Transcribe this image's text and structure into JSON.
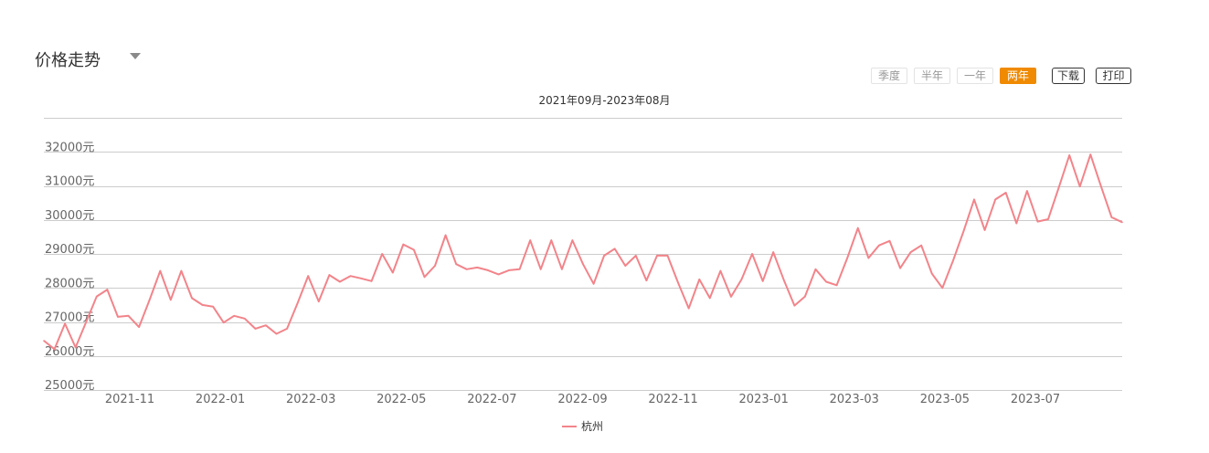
{
  "header": {
    "title": "价格走势"
  },
  "range_buttons": [
    {
      "label": "季度",
      "active": false
    },
    {
      "label": "半年",
      "active": false
    },
    {
      "label": "一年",
      "active": false
    },
    {
      "label": "两年",
      "active": true
    }
  ],
  "tools": {
    "download": "下载",
    "print": "打印"
  },
  "colors": {
    "accent": "#f08a00",
    "series": "#f2848a",
    "grid": "#cccccc"
  },
  "chart_data": {
    "type": "line",
    "title": "2021年09月-2023年08月",
    "ylim": [
      25000,
      33000
    ],
    "y_ticks": [
      25000,
      26000,
      27000,
      28000,
      29000,
      30000,
      31000,
      32000
    ],
    "y_tick_labels": [
      "25000元",
      "26000元",
      "27000元",
      "28000元",
      "29000元",
      "30000元",
      "31000元",
      "32000元"
    ],
    "x_tick_labels": [
      "2021-11",
      "2022-01",
      "2022-03",
      "2022-05",
      "2022-07",
      "2022-09",
      "2022-11",
      "2023-01",
      "2023-03",
      "2023-05",
      "2023-07"
    ],
    "grid": true,
    "legend": "bottom-center",
    "series": [
      {
        "name": "杭州",
        "color": "#f2848a",
        "values": [
          26450,
          26200,
          26950,
          26250,
          27000,
          27750,
          27950,
          27150,
          27180,
          26850,
          27650,
          28500,
          27650,
          28500,
          27700,
          27500,
          27450,
          26980,
          27180,
          27100,
          26800,
          26900,
          26650,
          26800,
          27550,
          28350,
          27600,
          28380,
          28180,
          28350,
          28280,
          28200,
          29000,
          28450,
          29280,
          29120,
          28320,
          28650,
          29550,
          28700,
          28550,
          28600,
          28520,
          28400,
          28520,
          28550,
          29400,
          28550,
          29400,
          28550,
          29400,
          28700,
          28120,
          28950,
          29150,
          28650,
          28950,
          28220,
          28950,
          28950,
          28150,
          27400,
          28250,
          27700,
          28500,
          27740,
          28250,
          29000,
          28200,
          29050,
          28230,
          27480,
          27750,
          28550,
          28180,
          28080,
          28880,
          29760,
          28880,
          29250,
          29380,
          28580,
          29050,
          29250,
          28420,
          28000,
          28800,
          29670,
          30600,
          29700,
          30600,
          30800,
          29900,
          30850,
          29950,
          30020,
          30950,
          31900,
          30980,
          31920,
          30980,
          30080,
          29930
        ]
      }
    ]
  }
}
